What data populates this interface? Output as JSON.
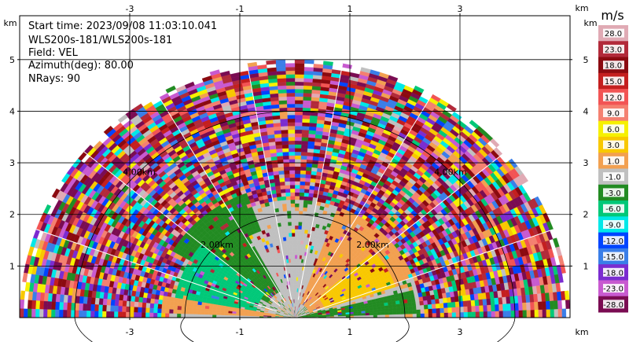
{
  "chart_data": {
    "type": "heatmap",
    "subtype": "ppi-sector",
    "info": {
      "start_time": "Start time: 2023/09/08 11:03:10.041",
      "site": "WLS200s-181/WLS200s-181",
      "field": "Field: VEL",
      "azimuth": "Azimuth(deg): 80.00",
      "nrays": "NRays: 90"
    },
    "x_ticks": [
      "-3",
      "-1",
      "1",
      "3"
    ],
    "x_tick_values": [
      -3,
      -1,
      1,
      3
    ],
    "y_ticks": [
      "1",
      "2",
      "3",
      "4",
      "5"
    ],
    "y_tick_values": [
      1,
      2,
      3,
      4,
      5
    ],
    "x_unit": "km",
    "y_unit": "km",
    "xlim": [
      -5.0,
      5.0
    ],
    "ylim": [
      0.0,
      5.85
    ],
    "range_rings": [
      {
        "label": "2.00km",
        "range_km": 2.0
      },
      {
        "label": "4.00km",
        "range_km": 4.0
      }
    ],
    "max_range_km": 5.0,
    "azimuth_start_deg": 0,
    "azimuth_end_deg": 180,
    "radial_spokes_every_deg": 20,
    "grid": true,
    "colorbar": {
      "unit": "m/s",
      "labels": [
        "28.0",
        "23.0",
        "18.0",
        "15.0",
        "12.0",
        "9.0",
        "6.0",
        "3.0",
        "1.0",
        "-1.0",
        "-3.0",
        "-6.0",
        "-9.0",
        "-12.0",
        "-15.0",
        "-18.0",
        "-23.0",
        "-28.0"
      ],
      "colors": [
        "#e0aab4",
        "#b22a3a",
        "#8b0a10",
        "#c41f1f",
        "#f25454",
        "#f48070",
        "#f6f000",
        "#f8c800",
        "#f2a050",
        "#c0c0c0",
        "#228b22",
        "#00c878",
        "#00e8e8",
        "#0044ff",
        "#3a7ee8",
        "#7b2cd0",
        "#c85ad0",
        "#7a0c52"
      ]
    },
    "zones": [
      {
        "name": "near-west-green",
        "az": [
          110,
          150
        ],
        "r": [
          0.6,
          2.6
        ],
        "value": -3.0
      },
      {
        "name": "near-west-spring",
        "az": [
          140,
          172
        ],
        "r": [
          0.7,
          2.2
        ],
        "value": -6.0
      },
      {
        "name": "near-center-gray",
        "az": [
          62,
          118
        ],
        "r": [
          0.0,
          1.8
        ],
        "value": 0.0
      },
      {
        "name": "near-east-orange",
        "az": [
          20,
          70
        ],
        "r": [
          0.3,
          2.3
        ],
        "value": 1.5
      },
      {
        "name": "near-east-yellow",
        "az": [
          18,
          42
        ],
        "r": [
          0.6,
          1.9
        ],
        "value": 5.0
      },
      {
        "name": "low-east-green",
        "az": [
          2,
          14
        ],
        "r": [
          0.0,
          2.2
        ],
        "value": -3.0
      },
      {
        "name": "low-west-orange",
        "az": [
          170,
          178
        ],
        "r": [
          0.2,
          2.4
        ],
        "value": 2.0
      }
    ]
  }
}
